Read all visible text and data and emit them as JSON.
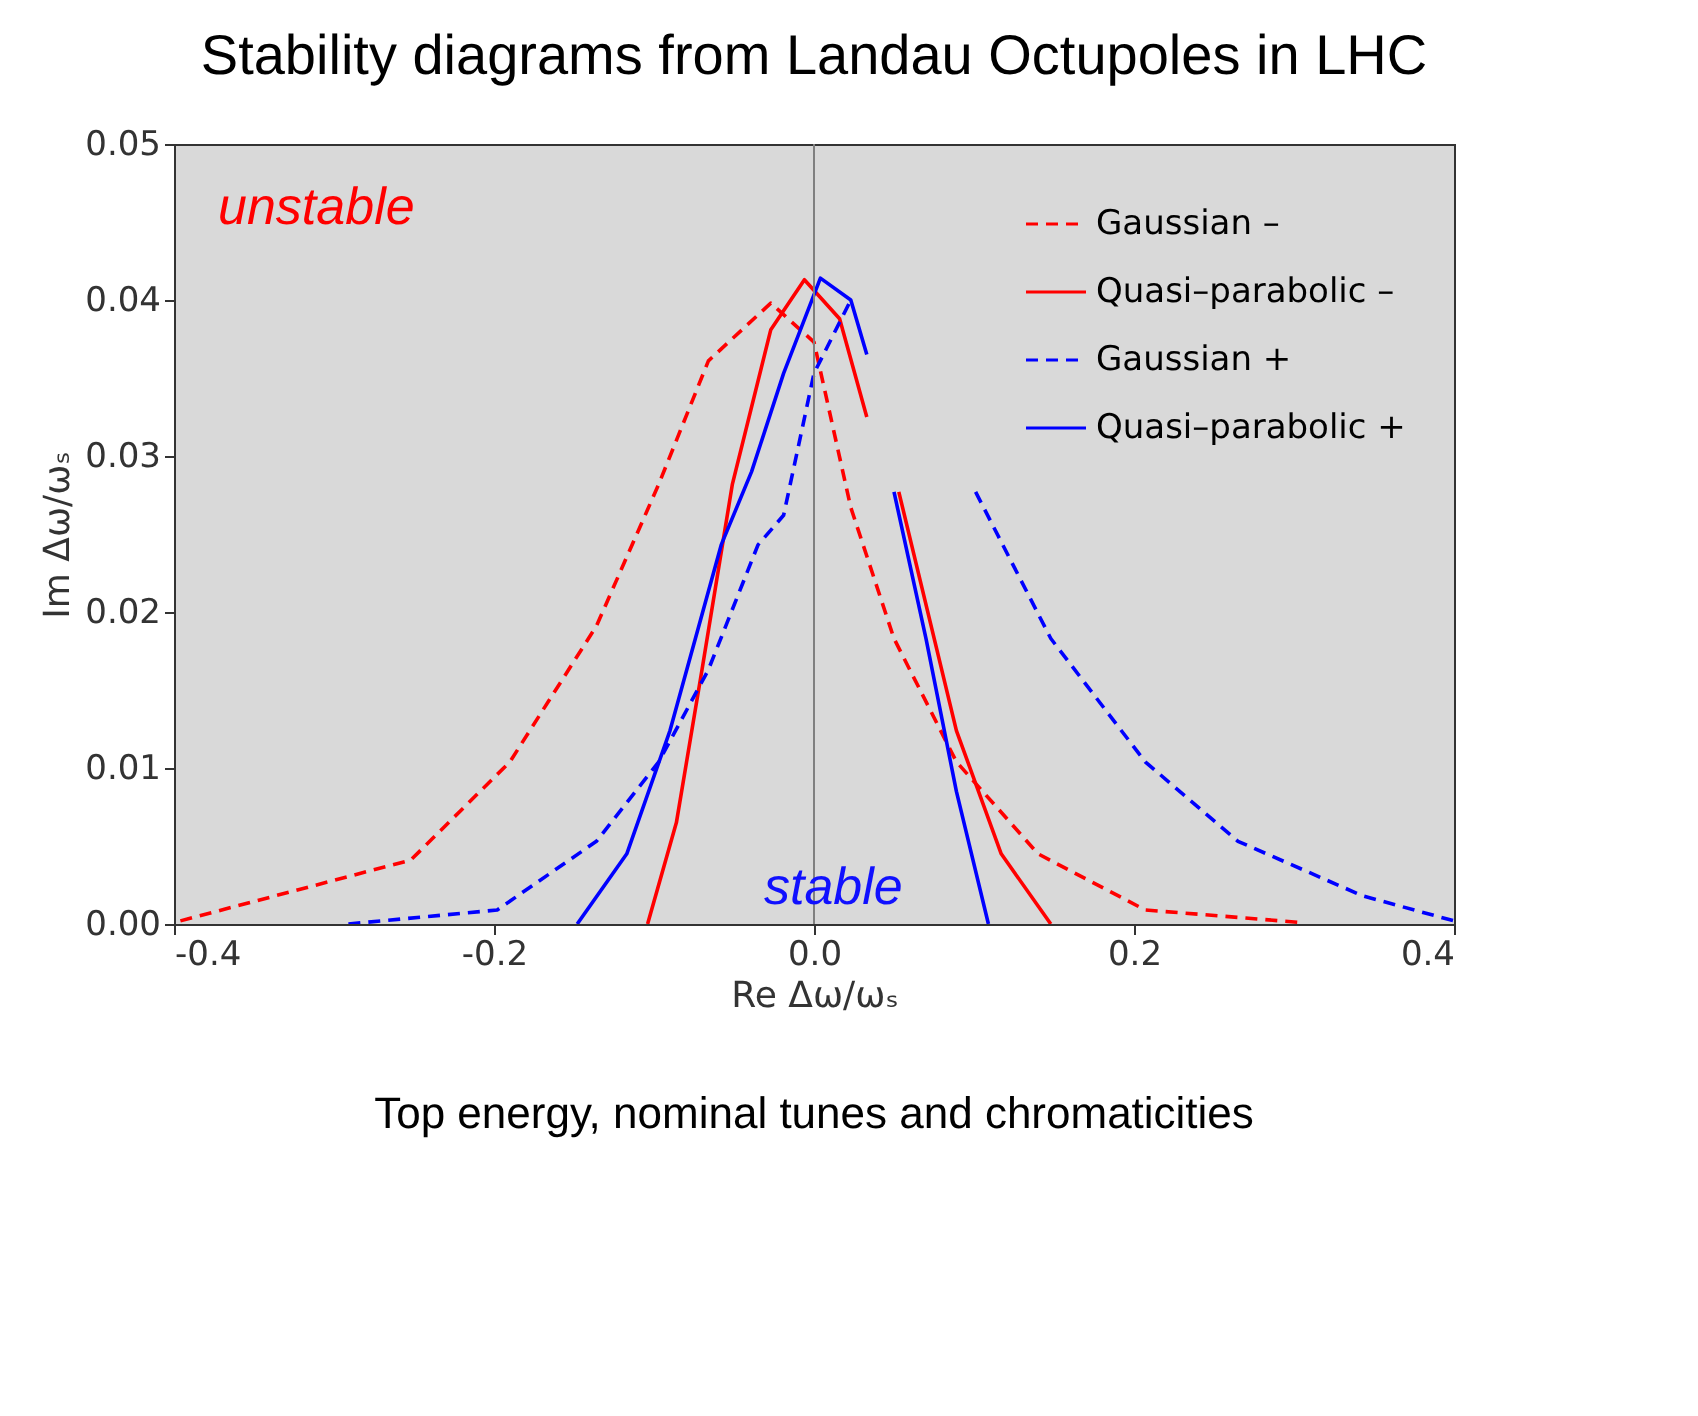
{
  "chart_data": {
    "type": "line",
    "title": "Stability diagrams from Landau Octupoles in LHC",
    "xlabel": "Re Δω/ωₛ",
    "ylabel": "Im Δω/ωₛ",
    "annotations": [
      "unstable",
      "stable",
      "Top energy, nominal tunes and chromaticities"
    ],
    "xlim": [
      -0.4,
      0.4
    ],
    "ylim": [
      0,
      0.05
    ],
    "xticks": [
      {
        "value": -0.4,
        "label": "-0.4"
      },
      {
        "value": -0.2,
        "label": "-0.2"
      },
      {
        "value": 0,
        "label": "0.0"
      },
      {
        "value": 0.2,
        "label": "0.2"
      },
      {
        "value": 0.4,
        "label": "0.4"
      }
    ],
    "yticks": [
      {
        "value": 0,
        "label": "0.00"
      },
      {
        "value": 0.01,
        "label": "0.01"
      },
      {
        "value": 0.02,
        "label": "0.02"
      },
      {
        "value": 0.03,
        "label": "0.03"
      },
      {
        "value": 0.04,
        "label": "0.04"
      },
      {
        "value": 0.05,
        "label": "0.05"
      }
    ],
    "grid": false,
    "legend": "top right",
    "marker": "none",
    "ref_lines": [
      {
        "axis": "x",
        "value": 0,
        "color": "#808080"
      }
    ],
    "series": [
      {
        "name": "Gaussian –",
        "color": "#ff0000",
        "line_style": "dashed",
        "x": [
          -0.396,
          -0.252,
          -0.19,
          -0.136,
          -0.097,
          -0.066,
          -0.027,
          0.0,
          0.023,
          0.05,
          0.089,
          0.14,
          0.207,
          0.304
        ],
        "values": [
          0.0002,
          0.0041,
          0.0104,
          0.0191,
          0.0282,
          0.0361,
          0.0398,
          0.0373,
          0.0267,
          0.0183,
          0.0104,
          0.0045,
          0.0009,
          0.0001
        ]
      },
      {
        "name": "Quasi–parabolic –",
        "color": "#ff0000",
        "line_style": "solid",
        "x": [
          -0.104,
          -0.086,
          -0.07,
          -0.051,
          -0.027,
          -0.006,
          0.016,
          0.033,
          0.04,
          0.053,
          0.089,
          0.117,
          0.148
        ],
        "values": [
          0,
          0.0065,
          0.0163,
          0.0282,
          0.0381,
          0.0413,
          0.0388,
          0.0325,
          null,
          0.0277,
          0.0124,
          0.0045,
          0
        ]
      },
      {
        "name": "Gaussian +",
        "color": "#0000ff",
        "line_style": "dashed",
        "x": [
          -0.291,
          -0.198,
          -0.136,
          -0.097,
          -0.066,
          -0.035,
          -0.019,
          0.0,
          0.023,
          0.05,
          0.101,
          0.148,
          0.207,
          0.265,
          0.343,
          0.4
        ],
        "values": [
          0,
          0.0009,
          0.0053,
          0.0104,
          0.0163,
          0.0243,
          0.0262,
          0.0353,
          0.04,
          null,
          0.0277,
          0.0183,
          0.0104,
          0.0053,
          0.0018,
          0.0002
        ]
      },
      {
        "name": "Quasi–parabolic +",
        "color": "#0000ff",
        "line_style": "solid",
        "x": [
          -0.148,
          -0.117,
          -0.09,
          -0.058,
          -0.039,
          -0.019,
          0.004,
          0.023,
          0.033,
          0.04,
          0.05,
          0.07,
          0.089,
          0.109
        ],
        "values": [
          0,
          0.0045,
          0.0124,
          0.0243,
          0.029,
          0.0353,
          0.0414,
          0.04,
          0.0365,
          null,
          0.0277,
          0.0183,
          0.0085,
          0
        ]
      }
    ]
  }
}
